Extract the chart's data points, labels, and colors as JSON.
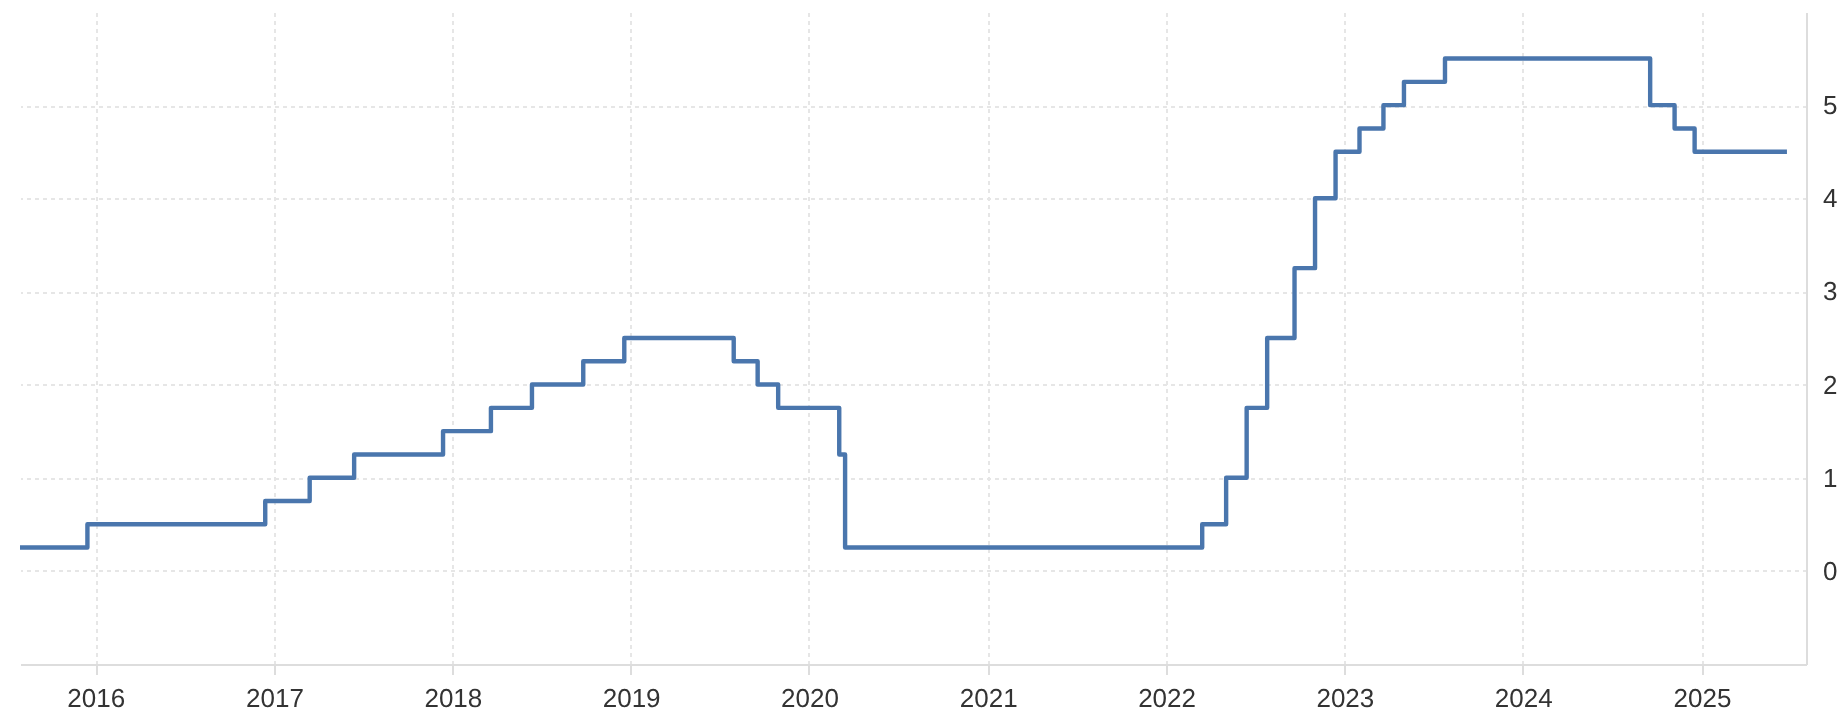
{
  "chart_data": {
    "type": "step",
    "x": [
      "2015-07-31",
      "2015-12-16",
      "2016-12-14",
      "2017-03-15",
      "2017-06-14",
      "2017-12-13",
      "2018-03-21",
      "2018-06-13",
      "2018-09-26",
      "2018-12-19",
      "2019-07-31",
      "2019-09-18",
      "2019-10-30",
      "2020-03-03",
      "2020-03-15",
      "2022-03-16",
      "2022-05-04",
      "2022-06-15",
      "2022-07-27",
      "2022-09-21",
      "2022-11-02",
      "2022-12-14",
      "2023-02-01",
      "2023-03-22",
      "2023-05-03",
      "2023-07-26",
      "2024-09-18",
      "2024-11-07",
      "2024-12-18",
      "2025-06-25"
    ],
    "series": [
      {
        "color": "#4a76ad",
        "values": [
          0.25,
          0.5,
          0.75,
          1,
          1.25,
          1.5,
          1.75,
          2,
          2.25,
          2.5,
          2.25,
          2,
          1.75,
          1.25,
          0.25,
          0.5,
          1,
          1.75,
          2.5,
          3.25,
          4,
          4.5,
          4.75,
          5,
          5.25,
          5.5,
          5,
          4.75,
          4.5,
          4.5
        ]
      }
    ],
    "xlim": [
      "2015-07-31",
      "2025-08-03"
    ],
    "xticks": [
      "2016",
      "2017",
      "2018",
      "2019",
      "2020",
      "2021",
      "2022",
      "2023",
      "2024",
      "2025"
    ],
    "ylim": [
      -1,
      6
    ],
    "yticks": [
      0,
      1,
      2,
      3,
      4,
      5
    ],
    "grid": true,
    "line_style": "solid",
    "marker": "none"
  }
}
